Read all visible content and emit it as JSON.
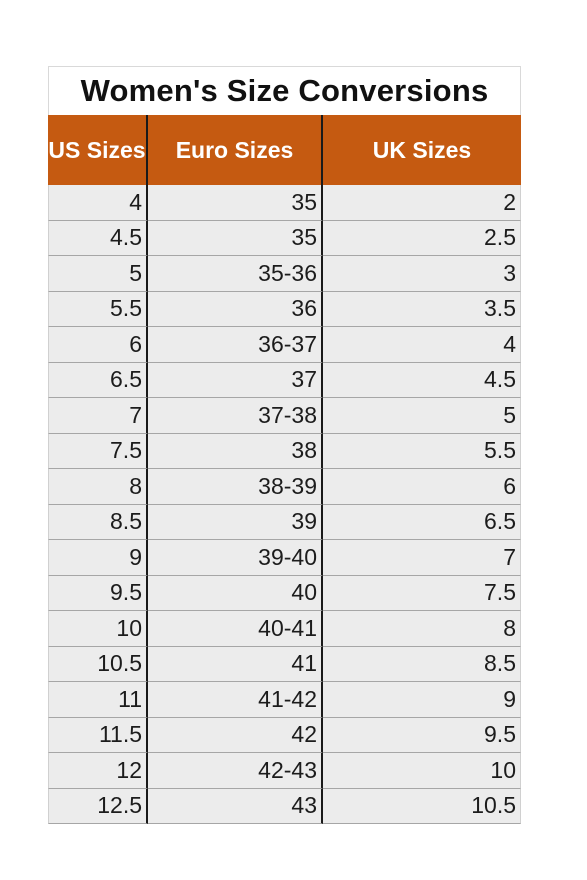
{
  "title": "Women's Size Conversions",
  "headers": [
    "US Sizes",
    "Euro Sizes",
    "UK Sizes"
  ],
  "rows": [
    [
      "4",
      "35",
      "2"
    ],
    [
      "4.5",
      "35",
      "2.5"
    ],
    [
      "5",
      "35-36",
      "3"
    ],
    [
      "5.5",
      "36",
      "3.5"
    ],
    [
      "6",
      "36-37",
      "4"
    ],
    [
      "6.5",
      "37",
      "4.5"
    ],
    [
      "7",
      "37-38",
      "5"
    ],
    [
      "7.5",
      "38",
      "5.5"
    ],
    [
      "8",
      "38-39",
      "6"
    ],
    [
      "8.5",
      "39",
      "6.5"
    ],
    [
      "9",
      "39-40",
      "7"
    ],
    [
      "9.5",
      "40",
      "7.5"
    ],
    [
      "10",
      "40-41",
      "8"
    ],
    [
      "10.5",
      "41",
      "8.5"
    ],
    [
      "11",
      "41-42",
      "9"
    ],
    [
      "11.5",
      "42",
      "9.5"
    ],
    [
      "12",
      "42-43",
      "10"
    ],
    [
      "12.5",
      "43",
      "10.5"
    ]
  ],
  "colors": {
    "header_bg": "#c55a11",
    "header_text": "#ffffff",
    "cell_bg": "#ececec",
    "column_divider": "#1a1a1a"
  }
}
